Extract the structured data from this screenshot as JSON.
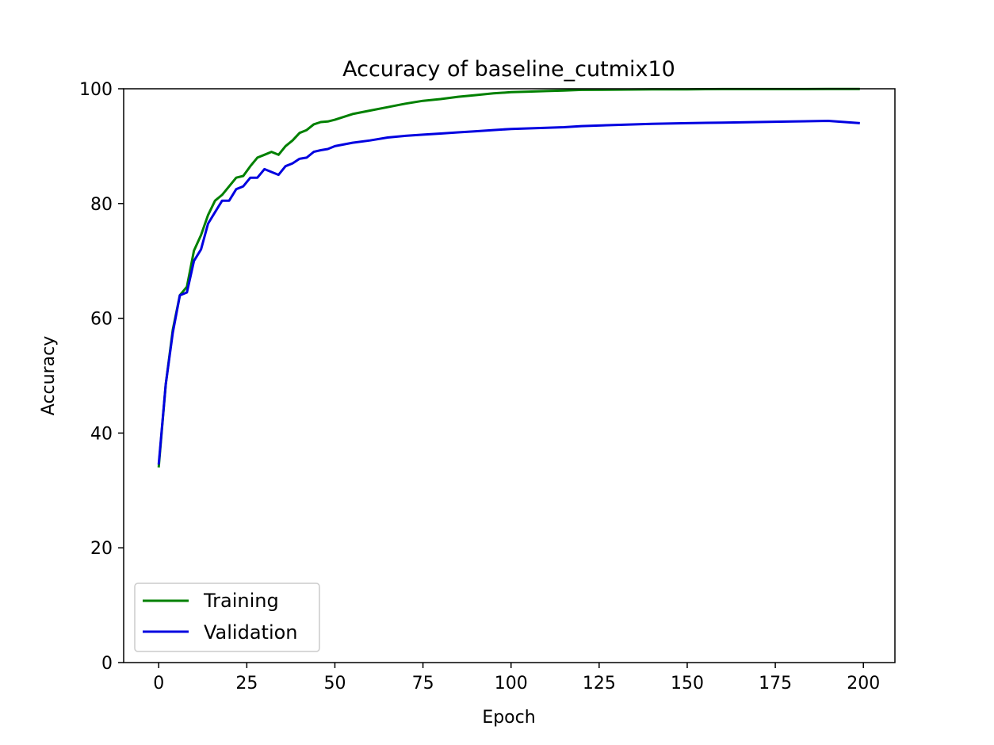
{
  "chart_data": {
    "type": "line",
    "title": "Accuracy of baseline_cutmix10",
    "xlabel": "Epoch",
    "ylabel": "Accuracy",
    "xlim": [
      -9.95,
      208.95
    ],
    "ylim": [
      0,
      100
    ],
    "xticks": [
      0,
      25,
      50,
      75,
      100,
      125,
      150,
      175,
      200
    ],
    "yticks": [
      0,
      20,
      40,
      60,
      80,
      100
    ],
    "grid": false,
    "legend_position": "lower-left",
    "series": [
      {
        "name": "Training",
        "color": "#008000",
        "x": [
          0,
          2,
          4,
          6,
          8,
          10,
          12,
          14,
          16,
          18,
          20,
          22,
          24,
          26,
          28,
          30,
          32,
          34,
          36,
          38,
          40,
          42,
          44,
          46,
          48,
          50,
          55,
          60,
          65,
          70,
          75,
          80,
          85,
          90,
          95,
          100,
          105,
          110,
          115,
          120,
          130,
          140,
          150,
          160,
          170,
          180,
          190,
          199
        ],
        "values": [
          34.0,
          48.5,
          58.0,
          64.0,
          65.5,
          71.8,
          74.5,
          78.0,
          80.5,
          81.5,
          83.0,
          84.5,
          84.8,
          86.5,
          88.0,
          88.5,
          89.0,
          88.5,
          90.0,
          91.0,
          92.3,
          92.8,
          93.8,
          94.2,
          94.3,
          94.6,
          95.6,
          96.2,
          96.8,
          97.4,
          97.9,
          98.2,
          98.6,
          98.9,
          99.2,
          99.4,
          99.5,
          99.6,
          99.7,
          99.8,
          99.85,
          99.9,
          99.9,
          99.95,
          99.95,
          99.95,
          99.97,
          99.97
        ]
      },
      {
        "name": "Validation",
        "color": "#0000e0",
        "x": [
          0,
          2,
          4,
          6,
          8,
          10,
          12,
          14,
          16,
          18,
          20,
          22,
          24,
          26,
          28,
          30,
          32,
          34,
          36,
          38,
          40,
          42,
          44,
          46,
          48,
          50,
          55,
          60,
          65,
          70,
          75,
          80,
          85,
          90,
          95,
          100,
          105,
          110,
          115,
          120,
          130,
          140,
          150,
          160,
          170,
          180,
          190,
          199
        ],
        "values": [
          34.5,
          48.5,
          57.5,
          64.0,
          64.5,
          70.0,
          72.0,
          76.5,
          78.5,
          80.5,
          80.5,
          82.5,
          83.0,
          84.5,
          84.5,
          86.0,
          85.5,
          85.0,
          86.5,
          87.0,
          87.8,
          88.0,
          89.0,
          89.3,
          89.5,
          90.0,
          90.6,
          91.0,
          91.5,
          91.8,
          92.0,
          92.2,
          92.4,
          92.6,
          92.8,
          93.0,
          93.1,
          93.2,
          93.3,
          93.5,
          93.7,
          93.9,
          94.0,
          94.1,
          94.2,
          94.3,
          94.4,
          94.0
        ]
      }
    ]
  }
}
